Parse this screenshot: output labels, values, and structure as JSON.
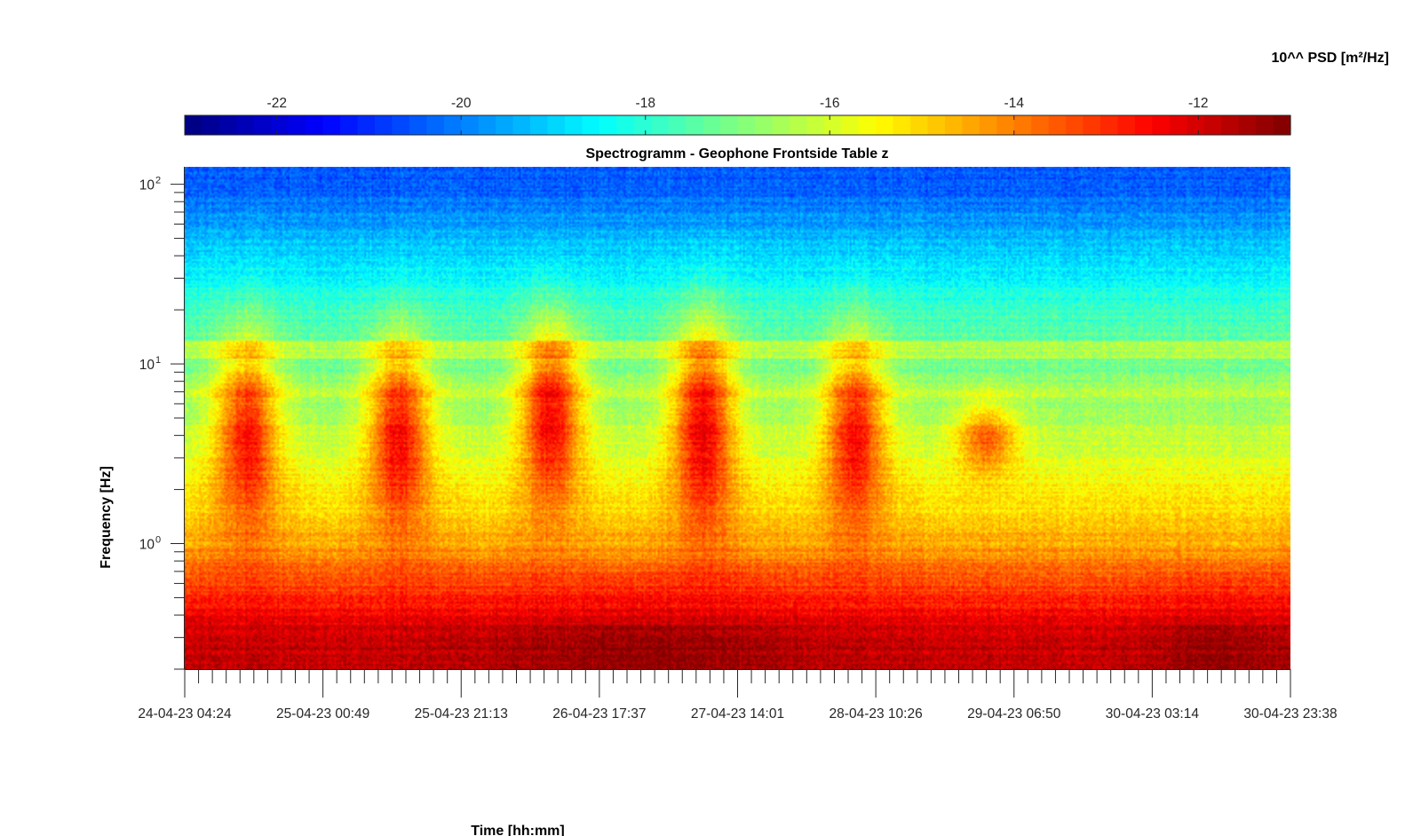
{
  "chart_data": {
    "type": "heatmap",
    "title": "Spectrogramm - Geophone Frontside Table z",
    "xlabel": "Time [hh:mm]",
    "ylabel": "Frequency [Hz]",
    "x_tick_labels": [
      "24-04-23 04:24",
      "25-04-23 00:49",
      "25-04-23 21:13",
      "26-04-23 17:37",
      "27-04-23 14:01",
      "28-04-23 10:26",
      "29-04-23 06:50",
      "30-04-23 03:14",
      "30-04-23 23:38"
    ],
    "y_scale": "log",
    "y_range": [
      0.2,
      125
    ],
    "y_tick_labels": [
      {
        "value": 1,
        "base": "10",
        "exp": "0"
      },
      {
        "value": 10,
        "base": "10",
        "exp": "1"
      },
      {
        "value": 100,
        "base": "10",
        "exp": "2"
      }
    ],
    "colorbar": {
      "label": "10^^ PSD [m²/Hz]",
      "range": [
        -23,
        -11
      ],
      "ticks": [
        -22,
        -20,
        -18,
        -16,
        -14,
        -12
      ],
      "colormap": "jet",
      "placement": "top"
    },
    "activity_bursts": [
      {
        "center_day": 0.45,
        "freq_range_hz": [
          2,
          10
        ],
        "peak_log_psd": -12.8
      },
      {
        "center_day": 1.55,
        "freq_range_hz": [
          2,
          10
        ],
        "peak_log_psd": -12.6
      },
      {
        "center_day": 2.65,
        "freq_range_hz": [
          2.5,
          12
        ],
        "peak_log_psd": -12.5
      },
      {
        "center_day": 3.75,
        "freq_range_hz": [
          2,
          12
        ],
        "peak_log_psd": -12.4
      },
      {
        "center_day": 4.85,
        "freq_range_hz": [
          2,
          10
        ],
        "peak_log_psd": -12.7
      },
      {
        "center_day": 5.8,
        "freq_range_hz": [
          3,
          5
        ],
        "peak_log_psd": -13.6
      }
    ],
    "background_bands": [
      {
        "freq_hz": 0.3,
        "log_psd": -11.8
      },
      {
        "freq_hz": 1,
        "log_psd": -14.5
      },
      {
        "freq_hz": 5,
        "log_psd": -16.5
      },
      {
        "freq_hz": 20,
        "log_psd": -17.8
      },
      {
        "freq_hz": 100,
        "log_psd": -20.5
      }
    ]
  }
}
